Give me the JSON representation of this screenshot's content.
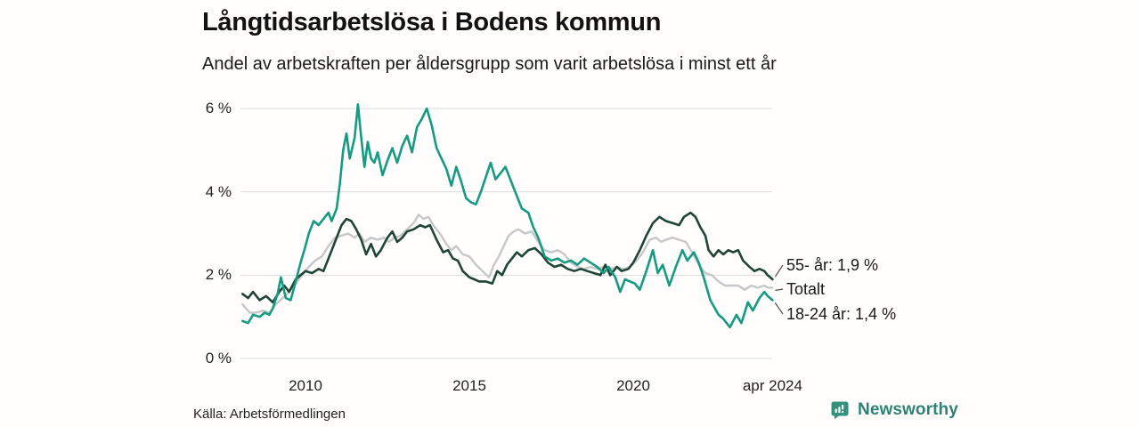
{
  "header": {
    "title": "Långtidsarbetslösa i Bodens kommun",
    "subtitle": "Andel av arbetskraften per åldersgrupp som varit arbetslösa i minst ett år"
  },
  "footer": {
    "source": "Källa: Arbetsförmedlingen",
    "brand_name": "Newsworthy",
    "brand_icon": "bar-chart-speech-bubble-icon"
  },
  "colors": {
    "background": "#fffefd",
    "gridline": "#dcdcdc",
    "text": "#1a1a1a",
    "axis_text": "#222222",
    "connector": "#4d4d4d",
    "brand_teal": "#35917e"
  },
  "chart_data": {
    "type": "line",
    "title": "Långtidsarbetslösa i Bodens kommun",
    "subtitle": "Andel av arbetskraften per åldersgrupp som varit arbetslösa i minst ett år",
    "unit": "%",
    "grid": true,
    "legend_position": "right-end-labels",
    "x_axis": {
      "range": [
        2008.08,
        2024.25
      ],
      "ticks": [
        {
          "value": 2010,
          "label": "2010"
        },
        {
          "value": 2015,
          "label": "2015"
        },
        {
          "value": 2020,
          "label": "2020"
        },
        {
          "value": 2024.25,
          "label": "apr 2024"
        }
      ]
    },
    "y_axis": {
      "range": [
        0,
        6
      ],
      "ticks": [
        {
          "value": 0,
          "label": "0 %"
        },
        {
          "value": 2,
          "label": "2 %"
        },
        {
          "value": 4,
          "label": "4 %"
        },
        {
          "value": 6,
          "label": "6 %"
        }
      ]
    },
    "series": [
      {
        "name": "Totalt",
        "color": "#c7c7ca",
        "stroke_width": 2.4,
        "end_label": "Totalt",
        "points": [
          [
            2008.08,
            1.3
          ],
          [
            2008.3,
            1.1
          ],
          [
            2008.5,
            1.1
          ],
          [
            2008.7,
            1.15
          ],
          [
            2008.9,
            1.1
          ],
          [
            2009.1,
            1.3
          ],
          [
            2009.3,
            1.45
          ],
          [
            2009.5,
            1.6
          ],
          [
            2009.7,
            1.8
          ],
          [
            2009.9,
            2.0
          ],
          [
            2010.1,
            2.2
          ],
          [
            2010.3,
            2.35
          ],
          [
            2010.5,
            2.45
          ],
          [
            2010.7,
            2.7
          ],
          [
            2010.9,
            2.9
          ],
          [
            2011.1,
            2.95
          ],
          [
            2011.3,
            3.0
          ],
          [
            2011.5,
            2.9
          ],
          [
            2011.65,
            3.0
          ],
          [
            2011.8,
            2.8
          ],
          [
            2012.0,
            2.9
          ],
          [
            2012.2,
            2.85
          ],
          [
            2012.4,
            2.9
          ],
          [
            2012.55,
            2.8
          ],
          [
            2012.7,
            2.9
          ],
          [
            2012.9,
            2.95
          ],
          [
            2013.1,
            3.1
          ],
          [
            2013.3,
            3.25
          ],
          [
            2013.45,
            3.45
          ],
          [
            2013.6,
            3.35
          ],
          [
            2013.75,
            3.4
          ],
          [
            2013.9,
            3.2
          ],
          [
            2014.1,
            3.0
          ],
          [
            2014.3,
            2.75
          ],
          [
            2014.45,
            2.6
          ],
          [
            2014.6,
            2.7
          ],
          [
            2014.8,
            2.5
          ],
          [
            2015.0,
            2.45
          ],
          [
            2015.2,
            2.25
          ],
          [
            2015.4,
            2.1
          ],
          [
            2015.6,
            1.95
          ],
          [
            2015.75,
            2.25
          ],
          [
            2015.9,
            2.45
          ],
          [
            2016.05,
            2.7
          ],
          [
            2016.2,
            2.95
          ],
          [
            2016.35,
            3.05
          ],
          [
            2016.5,
            3.1
          ],
          [
            2016.7,
            3.0
          ],
          [
            2016.9,
            3.05
          ],
          [
            2017.1,
            2.8
          ],
          [
            2017.3,
            2.6
          ],
          [
            2017.5,
            2.55
          ],
          [
            2017.7,
            2.6
          ],
          [
            2017.9,
            2.5
          ],
          [
            2018.1,
            2.3
          ],
          [
            2018.3,
            2.2
          ],
          [
            2018.5,
            2.15
          ],
          [
            2018.7,
            2.2
          ],
          [
            2018.9,
            2.15
          ],
          [
            2019.1,
            2.2
          ],
          [
            2019.3,
            2.15
          ],
          [
            2019.5,
            2.2
          ],
          [
            2019.7,
            2.15
          ],
          [
            2019.9,
            2.2
          ],
          [
            2020.1,
            2.35
          ],
          [
            2020.3,
            2.55
          ],
          [
            2020.5,
            2.85
          ],
          [
            2020.7,
            2.9
          ],
          [
            2020.85,
            2.8
          ],
          [
            2021.0,
            2.85
          ],
          [
            2021.2,
            2.9
          ],
          [
            2021.4,
            2.85
          ],
          [
            2021.6,
            2.8
          ],
          [
            2021.8,
            2.55
          ],
          [
            2022.0,
            2.25
          ],
          [
            2022.2,
            2.05
          ],
          [
            2022.4,
            2.0
          ],
          [
            2022.6,
            1.85
          ],
          [
            2022.8,
            1.75
          ],
          [
            2023.0,
            1.75
          ],
          [
            2023.2,
            1.75
          ],
          [
            2023.4,
            1.65
          ],
          [
            2023.6,
            1.75
          ],
          [
            2023.8,
            1.7
          ],
          [
            2024.0,
            1.75
          ],
          [
            2024.1,
            1.7
          ],
          [
            2024.25,
            1.7
          ]
        ]
      },
      {
        "name": "55- år",
        "color": "#1e4538",
        "stroke_width": 2.6,
        "end_label": "55- år: 1,9 %",
        "points": [
          [
            2008.08,
            1.55
          ],
          [
            2008.25,
            1.45
          ],
          [
            2008.4,
            1.6
          ],
          [
            2008.6,
            1.4
          ],
          [
            2008.8,
            1.5
          ],
          [
            2009.0,
            1.35
          ],
          [
            2009.2,
            1.6
          ],
          [
            2009.35,
            1.75
          ],
          [
            2009.5,
            1.6
          ],
          [
            2009.7,
            1.9
          ],
          [
            2009.85,
            2.0
          ],
          [
            2010.0,
            2.1
          ],
          [
            2010.2,
            2.05
          ],
          [
            2010.4,
            2.15
          ],
          [
            2010.55,
            2.1
          ],
          [
            2010.7,
            2.4
          ],
          [
            2010.85,
            2.7
          ],
          [
            2011.0,
            3.0
          ],
          [
            2011.1,
            3.2
          ],
          [
            2011.25,
            3.35
          ],
          [
            2011.4,
            3.3
          ],
          [
            2011.55,
            3.1
          ],
          [
            2011.7,
            2.85
          ],
          [
            2011.85,
            2.5
          ],
          [
            2012.0,
            2.75
          ],
          [
            2012.15,
            2.45
          ],
          [
            2012.3,
            2.6
          ],
          [
            2012.5,
            2.9
          ],
          [
            2012.65,
            3.05
          ],
          [
            2012.8,
            2.8
          ],
          [
            2012.95,
            2.9
          ],
          [
            2013.1,
            3.05
          ],
          [
            2013.3,
            3.1
          ],
          [
            2013.5,
            3.2
          ],
          [
            2013.65,
            3.15
          ],
          [
            2013.8,
            3.2
          ],
          [
            2014.0,
            2.85
          ],
          [
            2014.2,
            2.55
          ],
          [
            2014.35,
            2.6
          ],
          [
            2014.5,
            2.4
          ],
          [
            2014.65,
            2.35
          ],
          [
            2014.8,
            2.1
          ],
          [
            2015.0,
            1.95
          ],
          [
            2015.15,
            1.9
          ],
          [
            2015.3,
            1.85
          ],
          [
            2015.5,
            1.85
          ],
          [
            2015.7,
            1.8
          ],
          [
            2015.85,
            2.1
          ],
          [
            2016.0,
            2.0
          ],
          [
            2016.15,
            2.25
          ],
          [
            2016.3,
            2.4
          ],
          [
            2016.45,
            2.55
          ],
          [
            2016.6,
            2.45
          ],
          [
            2016.8,
            2.6
          ],
          [
            2017.0,
            2.65
          ],
          [
            2017.2,
            2.5
          ],
          [
            2017.4,
            2.3
          ],
          [
            2017.6,
            2.2
          ],
          [
            2017.8,
            2.25
          ],
          [
            2018.0,
            2.15
          ],
          [
            2018.2,
            2.1
          ],
          [
            2018.4,
            2.15
          ],
          [
            2018.6,
            2.1
          ],
          [
            2018.8,
            2.05
          ],
          [
            2019.0,
            2.0
          ],
          [
            2019.15,
            2.25
          ],
          [
            2019.3,
            2.0
          ],
          [
            2019.5,
            2.2
          ],
          [
            2019.65,
            2.1
          ],
          [
            2019.85,
            2.15
          ],
          [
            2020.0,
            2.3
          ],
          [
            2020.2,
            2.6
          ],
          [
            2020.4,
            2.95
          ],
          [
            2020.6,
            3.25
          ],
          [
            2020.8,
            3.4
          ],
          [
            2021.0,
            3.3
          ],
          [
            2021.2,
            3.25
          ],
          [
            2021.4,
            3.2
          ],
          [
            2021.55,
            3.4
          ],
          [
            2021.75,
            3.5
          ],
          [
            2021.9,
            3.4
          ],
          [
            2022.05,
            3.15
          ],
          [
            2022.2,
            2.95
          ],
          [
            2022.3,
            2.6
          ],
          [
            2022.45,
            2.45
          ],
          [
            2022.6,
            2.6
          ],
          [
            2022.75,
            2.5
          ],
          [
            2022.9,
            2.6
          ],
          [
            2023.05,
            2.55
          ],
          [
            2023.2,
            2.6
          ],
          [
            2023.35,
            2.35
          ],
          [
            2023.55,
            2.2
          ],
          [
            2023.7,
            2.1
          ],
          [
            2023.85,
            2.15
          ],
          [
            2024.0,
            2.1
          ],
          [
            2024.1,
            2.0
          ],
          [
            2024.25,
            1.9
          ]
        ]
      },
      {
        "name": "18-24 år",
        "color": "#179a82",
        "stroke_width": 2.6,
        "end_label": "18-24 år: 1,4 %",
        "points": [
          [
            2008.08,
            0.9
          ],
          [
            2008.25,
            0.85
          ],
          [
            2008.4,
            1.05
          ],
          [
            2008.6,
            1.0
          ],
          [
            2008.75,
            1.1
          ],
          [
            2008.9,
            1.05
          ],
          [
            2009.0,
            1.2
          ],
          [
            2009.15,
            1.55
          ],
          [
            2009.25,
            1.95
          ],
          [
            2009.4,
            1.45
          ],
          [
            2009.55,
            1.4
          ],
          [
            2009.7,
            1.85
          ],
          [
            2009.85,
            2.3
          ],
          [
            2010.0,
            2.7
          ],
          [
            2010.1,
            3.0
          ],
          [
            2010.25,
            3.3
          ],
          [
            2010.4,
            3.2
          ],
          [
            2010.55,
            3.35
          ],
          [
            2010.7,
            3.5
          ],
          [
            2010.8,
            3.3
          ],
          [
            2010.95,
            3.6
          ],
          [
            2011.05,
            4.2
          ],
          [
            2011.15,
            5.0
          ],
          [
            2011.25,
            5.4
          ],
          [
            2011.35,
            4.8
          ],
          [
            2011.5,
            5.3
          ],
          [
            2011.6,
            6.1
          ],
          [
            2011.7,
            5.3
          ],
          [
            2011.8,
            4.6
          ],
          [
            2011.9,
            5.2
          ],
          [
            2012.0,
            4.8
          ],
          [
            2012.1,
            4.7
          ],
          [
            2012.2,
            4.95
          ],
          [
            2012.35,
            4.4
          ],
          [
            2012.5,
            4.75
          ],
          [
            2012.65,
            5.05
          ],
          [
            2012.8,
            4.7
          ],
          [
            2012.95,
            5.1
          ],
          [
            2013.1,
            5.35
          ],
          [
            2013.25,
            4.95
          ],
          [
            2013.4,
            5.55
          ],
          [
            2013.55,
            5.75
          ],
          [
            2013.7,
            6.0
          ],
          [
            2013.85,
            5.6
          ],
          [
            2014.0,
            5.05
          ],
          [
            2014.15,
            4.8
          ],
          [
            2014.3,
            4.55
          ],
          [
            2014.45,
            4.15
          ],
          [
            2014.6,
            4.6
          ],
          [
            2014.75,
            4.25
          ],
          [
            2014.9,
            3.85
          ],
          [
            2015.05,
            3.75
          ],
          [
            2015.2,
            3.7
          ],
          [
            2015.35,
            4.0
          ],
          [
            2015.5,
            4.35
          ],
          [
            2015.65,
            4.7
          ],
          [
            2015.8,
            4.3
          ],
          [
            2015.95,
            4.45
          ],
          [
            2016.1,
            4.6
          ],
          [
            2016.25,
            4.3
          ],
          [
            2016.4,
            4.0
          ],
          [
            2016.6,
            3.6
          ],
          [
            2016.8,
            3.5
          ],
          [
            2016.95,
            3.15
          ],
          [
            2017.1,
            2.9
          ],
          [
            2017.3,
            2.45
          ],
          [
            2017.5,
            2.35
          ],
          [
            2017.7,
            2.4
          ],
          [
            2017.9,
            2.3
          ],
          [
            2018.1,
            2.35
          ],
          [
            2018.3,
            2.25
          ],
          [
            2018.5,
            2.4
          ],
          [
            2018.7,
            2.3
          ],
          [
            2018.9,
            2.2
          ],
          [
            2019.1,
            2.05
          ],
          [
            2019.25,
            2.2
          ],
          [
            2019.45,
            1.95
          ],
          [
            2019.6,
            1.6
          ],
          [
            2019.75,
            1.9
          ],
          [
            2019.9,
            1.85
          ],
          [
            2020.05,
            1.8
          ],
          [
            2020.2,
            1.65
          ],
          [
            2020.4,
            2.1
          ],
          [
            2020.6,
            2.6
          ],
          [
            2020.75,
            2.05
          ],
          [
            2020.9,
            2.25
          ],
          [
            2021.1,
            1.75
          ],
          [
            2021.3,
            2.2
          ],
          [
            2021.5,
            2.6
          ],
          [
            2021.65,
            2.35
          ],
          [
            2021.85,
            2.55
          ],
          [
            2022.0,
            2.3
          ],
          [
            2022.15,
            1.95
          ],
          [
            2022.35,
            1.4
          ],
          [
            2022.6,
            1.05
          ],
          [
            2022.75,
            0.95
          ],
          [
            2022.95,
            0.75
          ],
          [
            2023.15,
            1.05
          ],
          [
            2023.3,
            0.85
          ],
          [
            2023.5,
            1.35
          ],
          [
            2023.65,
            1.15
          ],
          [
            2023.85,
            1.45
          ],
          [
            2024.0,
            1.6
          ],
          [
            2024.1,
            1.5
          ],
          [
            2024.25,
            1.4
          ]
        ]
      }
    ]
  }
}
